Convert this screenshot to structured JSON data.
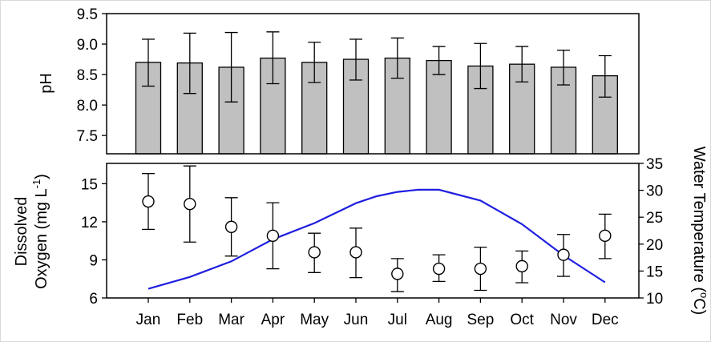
{
  "chart_data": [
    {
      "type": "bar",
      "categories": [
        "Jan",
        "Feb",
        "Mar",
        "Apr",
        "May",
        "Jun",
        "Jul",
        "Aug",
        "Sep",
        "Oct",
        "Nov",
        "Dec"
      ],
      "values": [
        8.7,
        8.69,
        8.62,
        8.77,
        8.7,
        8.75,
        8.77,
        8.73,
        8.64,
        8.67,
        8.62,
        8.48
      ],
      "error_upper": [
        9.08,
        9.18,
        9.19,
        9.2,
        9.03,
        9.08,
        9.1,
        8.96,
        9.01,
        8.96,
        8.9,
        8.81
      ],
      "error_lower": [
        8.31,
        8.19,
        8.05,
        8.35,
        8.37,
        8.41,
        8.44,
        8.5,
        8.27,
        8.38,
        8.33,
        8.13
      ],
      "ylabel": "pH",
      "ylim": [
        7.2,
        9.5
      ],
      "yticks": [
        "7.5",
        "8.0",
        "8.5",
        "9.0",
        "9.5"
      ],
      "bar_color": "#c0c0c0"
    },
    {
      "type": "scatter",
      "categories": [
        "Jan",
        "Feb",
        "Mar",
        "Apr",
        "May",
        "Jun",
        "Jul",
        "Aug",
        "Sep",
        "Oct",
        "Nov",
        "Dec"
      ],
      "series": [
        {
          "values": [
            13.6,
            13.4,
            11.6,
            10.9,
            9.6,
            9.6,
            7.9,
            8.3,
            8.3,
            8.5,
            9.4,
            10.9
          ],
          "error_upper": [
            15.8,
            16.4,
            13.9,
            13.5,
            11.1,
            11.5,
            9.1,
            9.4,
            10.0,
            9.7,
            11.0,
            12.6
          ],
          "error_lower": [
            11.4,
            10.4,
            9.3,
            8.3,
            8.0,
            7.6,
            6.5,
            7.3,
            6.6,
            7.2,
            7.7,
            9.1
          ],
          "marker": "open-circle"
        }
      ],
      "ylabel_line1": "Dissolved",
      "ylabel_line2": "Oxygen (mg L",
      "ylabel_sup": "-1",
      "ylabel_end": ")",
      "ylim": [
        6,
        16.6
      ],
      "yticks": [
        "6",
        "9",
        "12",
        "15"
      ],
      "secondary_axis": {
        "type": "line",
        "label": "Water Temperature (",
        "label_sup": "o",
        "label_end": "C)",
        "ylim": [
          10,
          35
        ],
        "yticks": [
          "10",
          "15",
          "20",
          "25",
          "30",
          "35"
        ],
        "x": [
          0,
          1,
          2,
          3,
          4,
          5,
          5.5,
          6,
          6.5,
          7,
          8,
          9,
          10,
          11
        ],
        "values": [
          11.7,
          13.9,
          16.8,
          20.9,
          23.9,
          27.6,
          28.9,
          29.7,
          30.1,
          30.1,
          28.1,
          23.7,
          17.9,
          12.9
        ],
        "color": "#1f1fe0"
      }
    }
  ]
}
